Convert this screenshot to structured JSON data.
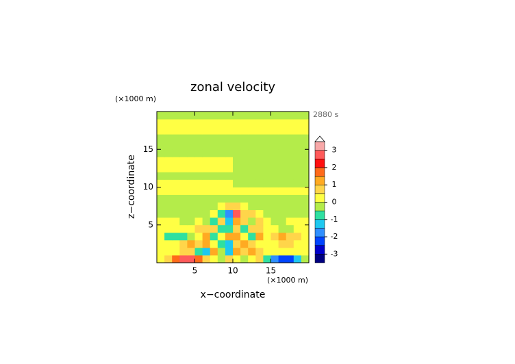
{
  "chart_data": {
    "type": "contour",
    "title": "zonal velocity",
    "x_label": "x−coordinate",
    "y_label": "z−coordinate",
    "x_unit": "(×1000 m)",
    "y_unit": "(×1000 m)",
    "time_label": "2880 s",
    "xlim": [
      0,
      20
    ],
    "ylim": [
      0,
      20
    ],
    "xticks": [
      5,
      10,
      15
    ],
    "yticks": [
      5,
      10,
      15
    ],
    "x": [
      0.5,
      1.5,
      2.5,
      3.5,
      4.5,
      5.5,
      6.5,
      7.5,
      8.5,
      9.5,
      10.5,
      11.5,
      12.5,
      13.5,
      14.5,
      15.5,
      16.5,
      17.5,
      18.5,
      19.5
    ],
    "y": [
      0.5,
      1.5,
      2.5,
      3.5,
      4.5,
      5.5,
      6.5,
      7.5,
      8.5,
      9.5,
      10.5,
      11.5,
      12.5,
      13.5,
      14.5,
      15.5,
      16.5,
      17.5,
      18.5,
      19.5
    ],
    "z": [
      [
        0.3,
        0.5,
        1.5,
        2.5,
        2.5,
        1.5,
        0.5,
        0.3,
        -0.5,
        0.5,
        0.3,
        -0.5,
        0.3,
        0.5,
        -1,
        -2,
        -2.5,
        -2.5,
        -1.5,
        -0.3
      ],
      [
        0.2,
        0.2,
        0.3,
        0.5,
        0.8,
        -1,
        -1.2,
        1,
        -0.5,
        -1.5,
        1.2,
        0.8,
        1.2,
        0.5,
        0.3,
        0.2,
        0.2,
        0.3,
        0.2,
        0.2
      ],
      [
        0.2,
        0.2,
        0.3,
        0.6,
        1,
        0.6,
        1,
        0.3,
        -1,
        -1.2,
        0.6,
        1,
        0.5,
        0.3,
        0.2,
        0.3,
        0.6,
        0.5,
        0.3,
        0.2
      ],
      [
        0.2,
        -0.7,
        -0.8,
        -0.8,
        -0.5,
        0.4,
        1,
        -1,
        0.3,
        1.2,
        1.2,
        0.3,
        -0.8,
        1,
        0.3,
        0.6,
        1,
        0.9,
        0.6,
        0.3
      ],
      [
        0.3,
        0.2,
        0.2,
        0.2,
        0.3,
        0.6,
        0.8,
        0.5,
        -1,
        -0.8,
        0.8,
        -0.8,
        0.5,
        0.8,
        0.3,
        0.2,
        -0.2,
        -0.2,
        0.2,
        0.2
      ],
      [
        0.3,
        0.2,
        0.2,
        -0.2,
        -0.2,
        0.3,
        -0.3,
        -1,
        0.8,
        -1.5,
        1,
        0.8,
        -0.5,
        0.8,
        0.3,
        -0.2,
        -0.2,
        0.2,
        0.2,
        0.2
      ],
      [
        -0.2,
        -0.2,
        -0.2,
        -0.2,
        -0.2,
        -0.2,
        -0.2,
        0.3,
        -0.8,
        -1.8,
        2.5,
        0.8,
        0.6,
        0.3,
        -0.2,
        -0.2,
        -0.2,
        -0.2,
        -0.2,
        -0.2
      ],
      [
        -0.2,
        -0.2,
        -0.2,
        -0.2,
        -0.2,
        -0.2,
        -0.2,
        -0.2,
        0.3,
        0.5,
        0.5,
        0.3,
        -0.2,
        -0.2,
        -0.2,
        -0.2,
        -0.2,
        -0.2,
        -0.2,
        -0.2
      ],
      [
        -0.2,
        -0.2,
        -0.2,
        -0.2,
        -0.2,
        -0.2,
        -0.2,
        -0.2,
        -0.2,
        -0.2,
        -0.2,
        -0.2,
        -0.2,
        -0.2,
        -0.2,
        -0.2,
        -0.2,
        -0.2,
        -0.2,
        -0.2
      ],
      [
        0.2,
        0.2,
        0.2,
        0.2,
        0.2,
        0.2,
        0.2,
        0.2,
        0.2,
        0.2,
        0.2,
        0.2,
        0.2,
        0.2,
        0.2,
        0.2,
        0.2,
        0.2,
        0.2,
        0.2
      ],
      [
        0.2,
        0.2,
        0.2,
        0.2,
        0.2,
        0.2,
        0.2,
        0.2,
        0.2,
        0.2,
        -0.2,
        -0.2,
        -0.2,
        -0.2,
        -0.2,
        -0.2,
        -0.2,
        -0.2,
        -0.2,
        -0.2
      ],
      [
        -0.2,
        -0.2,
        -0.2,
        -0.2,
        -0.2,
        -0.2,
        -0.2,
        -0.2,
        -0.2,
        -0.2,
        -0.2,
        -0.2,
        -0.2,
        -0.2,
        -0.2,
        -0.2,
        -0.2,
        -0.2,
        -0.2,
        -0.2
      ],
      [
        0.2,
        0.2,
        0.2,
        0.2,
        0.2,
        0.2,
        0.2,
        0.2,
        0.2,
        0.2,
        -0.2,
        -0.2,
        -0.2,
        -0.2,
        -0.2,
        -0.2,
        -0.2,
        -0.2,
        -0.2,
        -0.2
      ],
      [
        0.2,
        0.2,
        0.2,
        0.2,
        0.2,
        0.2,
        0.2,
        0.2,
        0.2,
        0.2,
        -0.2,
        -0.2,
        -0.2,
        -0.2,
        -0.2,
        -0.2,
        -0.2,
        -0.2,
        -0.2,
        -0.2
      ],
      [
        -0.2,
        -0.2,
        -0.2,
        -0.2,
        -0.2,
        -0.2,
        -0.2,
        -0.2,
        -0.2,
        -0.2,
        -0.2,
        -0.2,
        -0.2,
        -0.2,
        -0.2,
        -0.2,
        -0.2,
        -0.2,
        -0.2,
        -0.2
      ],
      [
        -0.2,
        -0.2,
        -0.2,
        -0.2,
        -0.2,
        -0.2,
        -0.2,
        -0.2,
        -0.2,
        -0.2,
        -0.2,
        -0.2,
        -0.2,
        -0.2,
        -0.2,
        -0.2,
        -0.2,
        -0.2,
        -0.2,
        -0.2
      ],
      [
        -0.2,
        -0.2,
        -0.2,
        -0.2,
        -0.2,
        -0.2,
        -0.2,
        -0.2,
        -0.2,
        -0.2,
        -0.2,
        -0.2,
        -0.2,
        -0.2,
        -0.2,
        -0.2,
        -0.2,
        -0.2,
        -0.2,
        -0.2
      ],
      [
        0.2,
        0.2,
        0.2,
        0.2,
        0.2,
        0.2,
        0.2,
        0.2,
        0.2,
        0.2,
        0.2,
        0.2,
        0.2,
        0.2,
        0.2,
        0.2,
        0.2,
        0.2,
        0.2,
        0.2
      ],
      [
        0.2,
        0.2,
        0.2,
        0.2,
        0.2,
        0.2,
        0.2,
        0.2,
        0.2,
        0.2,
        0.2,
        0.2,
        0.2,
        0.2,
        0.2,
        0.2,
        0.2,
        0.2,
        0.2,
        0.2
      ],
      [
        -0.2,
        -0.2,
        -0.2,
        -0.2,
        -0.2,
        -0.2,
        -0.2,
        -0.2,
        -0.2,
        -0.2,
        -0.2,
        -0.2,
        -0.2,
        -0.2,
        -0.2,
        -0.2,
        -0.2,
        -0.2,
        -0.2,
        -0.2
      ]
    ],
    "levels": [
      -3.5,
      -3,
      -2.5,
      -2,
      -1.5,
      -1,
      -0.5,
      0,
      0.5,
      1,
      1.5,
      2,
      2.5,
      3,
      3.5
    ],
    "colors": [
      "#000080",
      "#0000cc",
      "#0044ff",
      "#2f8fff",
      "#1ec8f0",
      "#2fe0a0",
      "#b4ec4a",
      "#ffff44",
      "#ffd54a",
      "#ffaa22",
      "#ff6a1a",
      "#ff1010",
      "#ff5a5a",
      "#f8a8a8"
    ],
    "cticks": [
      -3,
      -2,
      -1,
      0,
      1,
      2,
      3
    ]
  }
}
